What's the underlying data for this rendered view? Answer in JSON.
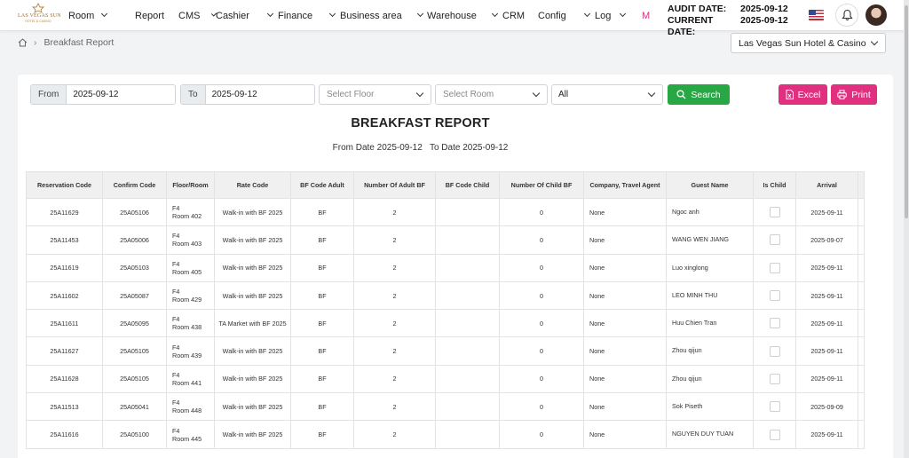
{
  "brand": {
    "name": "LAS VEGAS SUN",
    "sub": "HOTEL & CASINO"
  },
  "menu": [
    {
      "label": "Room",
      "has_dropdown": true
    },
    {
      "label": "Report",
      "has_dropdown": false
    },
    {
      "label": "CMS",
      "has_dropdown": true
    },
    {
      "label": "Cashier",
      "has_dropdown": true
    },
    {
      "label": "Finance",
      "has_dropdown": true
    },
    {
      "label": "Business area",
      "has_dropdown": true
    },
    {
      "label": "Warehouse",
      "has_dropdown": true
    },
    {
      "label": "CRM",
      "has_dropdown": false
    },
    {
      "label": "Config",
      "has_dropdown": true
    },
    {
      "label": "Log",
      "has_dropdown": true
    },
    {
      "label": "M",
      "has_dropdown": false
    }
  ],
  "audit": {
    "audit_label": "AUDIT DATE:",
    "audit_value": "2025-09-12",
    "current_label": "CURRENT DATE:",
    "current_value": "2025-09-12"
  },
  "icons": {
    "flag": "us-flag-icon",
    "bell": "bell-icon",
    "avatar": "user-avatar",
    "home": "home-icon",
    "search": "search-icon",
    "excel": "file-excel-icon",
    "print": "printer-icon"
  },
  "breadcrumb": {
    "current": "Breakfast Report"
  },
  "hotel_select": {
    "value": "Las Vegas Sun Hotel & Casino"
  },
  "filters": {
    "from_label": "From",
    "from_value": "2025-09-12",
    "to_label": "To",
    "to_value": "2025-09-12",
    "floor_placeholder": "Select Floor",
    "room_placeholder": "Select Room",
    "status_value": "All",
    "search_label": "Search",
    "excel_label": "Excel",
    "print_label": "Print"
  },
  "colors": {
    "search": "#28a745",
    "excel_print": "#e0307f",
    "more_menu": "#d63384"
  },
  "report": {
    "title": "BREAKFAST REPORT",
    "range": "From Date 2025-09-12   To Date 2025-09-12"
  },
  "table": {
    "columns": [
      "Reservation Code",
      "Confirm Code",
      "Floor/Room",
      "Rate Code",
      "BF Code Adult",
      "Number Of Adult BF",
      "BF Code Child",
      "Number Of Child BF",
      "Company, Travel Agent",
      "Guest Name",
      "Is Child",
      "Arrival"
    ],
    "rows": [
      {
        "res": "25A11629",
        "confirm": "25A05106",
        "floor": "F4",
        "room": "Room 402",
        "rate": "Walk-in with BF 2025",
        "bf_adult": "BF",
        "num_adult": "2",
        "bf_child": "",
        "num_child": "0",
        "company": "None",
        "guest": "Ngoc anh",
        "is_child": false,
        "arrival": "2025-09-11"
      },
      {
        "res": "25A11453",
        "confirm": "25A05006",
        "floor": "F4",
        "room": "Room 403",
        "rate": "Walk-in with BF 2025",
        "bf_adult": "BF",
        "num_adult": "2",
        "bf_child": "",
        "num_child": "0",
        "company": "None",
        "guest": "WANG WEN JIANG",
        "is_child": false,
        "arrival": "2025-09-07"
      },
      {
        "res": "25A11619",
        "confirm": "25A05103",
        "floor": "F4",
        "room": "Room 405",
        "rate": "Walk-in with BF 2025",
        "bf_adult": "BF",
        "num_adult": "2",
        "bf_child": "",
        "num_child": "0",
        "company": "None",
        "guest": "Luo xinglong",
        "is_child": false,
        "arrival": "2025-09-11"
      },
      {
        "res": "25A11602",
        "confirm": "25A05087",
        "floor": "F4",
        "room": "Room 429",
        "rate": "Walk-in with BF 2025",
        "bf_adult": "BF",
        "num_adult": "2",
        "bf_child": "",
        "num_child": "0",
        "company": "None",
        "guest": "LEO MINH THU",
        "is_child": false,
        "arrival": "2025-09-11"
      },
      {
        "res": "25A11611",
        "confirm": "25A05095",
        "floor": "F4",
        "room": "Room 438",
        "rate": "TA Market with BF 2025",
        "bf_adult": "BF",
        "num_adult": "2",
        "bf_child": "",
        "num_child": "0",
        "company": "None",
        "guest": "Huu Chien Tran",
        "is_child": false,
        "arrival": "2025-09-11"
      },
      {
        "res": "25A11627",
        "confirm": "25A05105",
        "floor": "F4",
        "room": "Room 439",
        "rate": "Walk-in with BF 2025",
        "bf_adult": "BF",
        "num_adult": "2",
        "bf_child": "",
        "num_child": "0",
        "company": "None",
        "guest": "Zhou qijun",
        "is_child": false,
        "arrival": "2025-09-11"
      },
      {
        "res": "25A11628",
        "confirm": "25A05105",
        "floor": "F4",
        "room": "Room 441",
        "rate": "Walk-in with BF 2025",
        "bf_adult": "BF",
        "num_adult": "2",
        "bf_child": "",
        "num_child": "0",
        "company": "None",
        "guest": "Zhou qijun",
        "is_child": false,
        "arrival": "2025-09-11"
      },
      {
        "res": "25A11513",
        "confirm": "25A05041",
        "floor": "F4",
        "room": "Room 448",
        "rate": "Walk-in with BF 2025",
        "bf_adult": "BF",
        "num_adult": "2",
        "bf_child": "",
        "num_child": "0",
        "company": "None",
        "guest": "Sok Piseth",
        "is_child": false,
        "arrival": "2025-09-09"
      },
      {
        "res": "25A11616",
        "confirm": "25A05100",
        "floor": "F4",
        "room": "Room 445",
        "rate": "Walk-in with BF 2025",
        "bf_adult": "BF",
        "num_adult": "2",
        "bf_child": "",
        "num_child": "0",
        "company": "None",
        "guest": "NGUYEN DUY TUAN",
        "is_child": false,
        "arrival": "2025-09-11"
      }
    ]
  }
}
